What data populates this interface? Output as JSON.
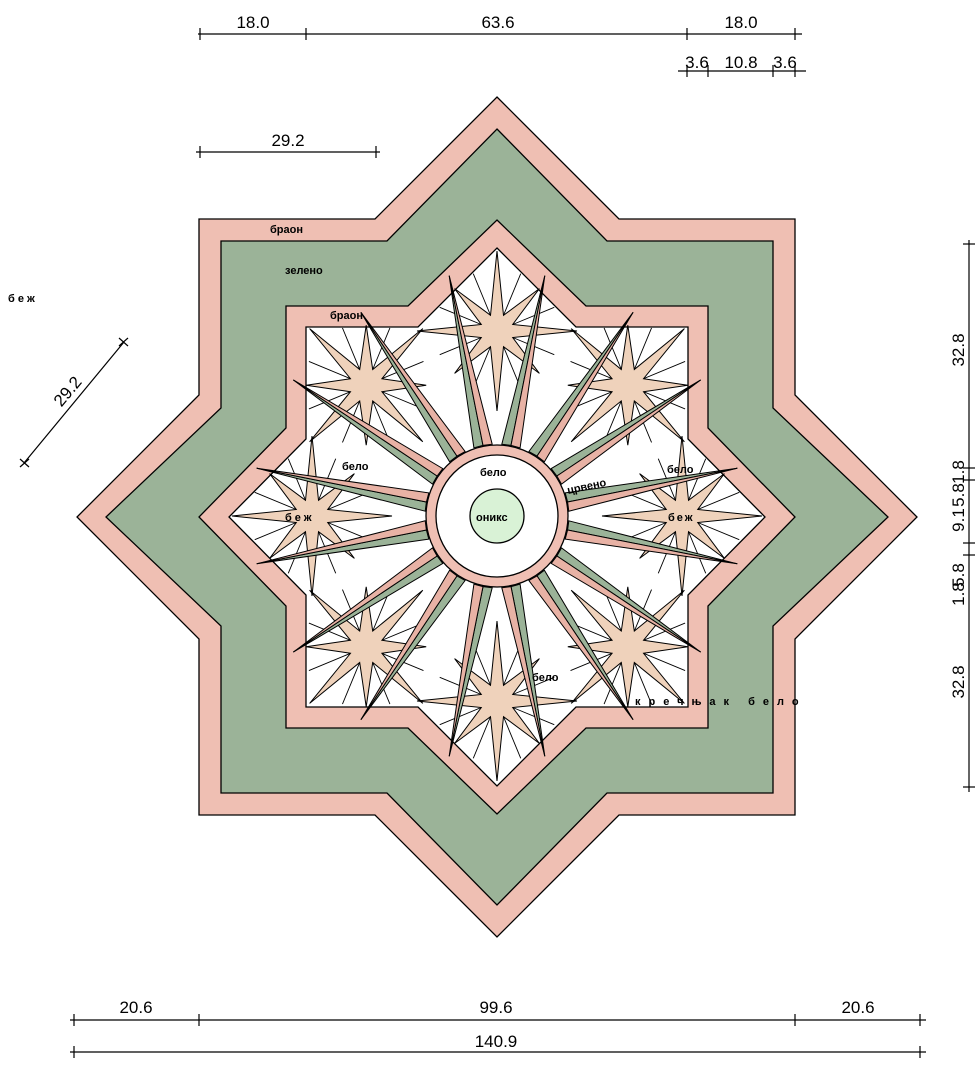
{
  "dimensions": {
    "top_left": "18.0",
    "top_middle": "63.6",
    "top_right": "18.0",
    "sub_a": "3.6",
    "sub_b": "10.8",
    "sub_c": "3.6",
    "inner": "29.2",
    "diagonal": "29.2",
    "right_top": "32.8",
    "right_a": "5.8",
    "right_b": "1.8",
    "right_mid": "9.1",
    "right_c": "5.8",
    "right_d": "1.8",
    "right_bottom": "32.8",
    "bottom_left": "20.6",
    "bottom_middle": "99.6",
    "bottom_right": "20.6",
    "bottom_total": "140.9"
  },
  "labels": {
    "brown_outer": "браон",
    "green": "зелено",
    "brown_inner": "браон",
    "beige_outside": "б е ж",
    "white_left": "бело",
    "beige_left": "беж",
    "white_center": "бело",
    "onyx": "оникс",
    "red": "црвено",
    "white_right": "бело",
    "beige_right": "беж",
    "white_bottom": "бело",
    "limestone": "кречњак бело"
  },
  "colors": {
    "brown": "#efbfb3",
    "green": "#9bb398",
    "beige": "#efd2bb",
    "white": "#ffffff",
    "red": "#e8b2a5",
    "onyx": "#d9f2d6",
    "outline": "#000000"
  }
}
